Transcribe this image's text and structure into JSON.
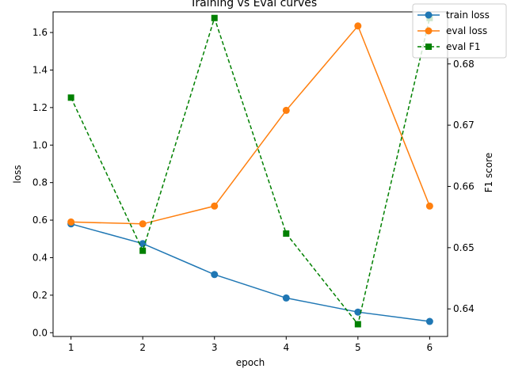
{
  "chart_data": {
    "type": "line",
    "title": "Training vs Eval curves",
    "xlabel": "epoch",
    "ylabel": "loss",
    "ylabel_right": "F1 score",
    "x": [
      1,
      2,
      3,
      4,
      5,
      6
    ],
    "xlim": [
      0.75,
      6.25
    ],
    "ylim": [
      -0.02,
      1.71
    ],
    "ylim_right": [
      0.6355,
      0.6885
    ],
    "x_ticks": [
      "1",
      "2",
      "3",
      "4",
      "5",
      "6"
    ],
    "y_ticks": [
      "0.0",
      "0.2",
      "0.4",
      "0.6",
      "0.8",
      "1.0",
      "1.2",
      "1.4",
      "1.6"
    ],
    "y_ticks_right": [
      "0.64",
      "0.65",
      "0.66",
      "0.67",
      "0.68"
    ],
    "grid": false,
    "legend_position": "top-right",
    "series": [
      {
        "name": "train loss",
        "axis": "left",
        "color": "#1f77b4",
        "marker": "circle",
        "linestyle": "solid",
        "values": [
          0.58,
          0.475,
          0.31,
          0.185,
          0.11,
          0.06
        ]
      },
      {
        "name": "eval loss",
        "axis": "left",
        "color": "#ff7f0e",
        "marker": "circle",
        "linestyle": "solid",
        "values": [
          0.59,
          0.58,
          0.675,
          1.185,
          1.635,
          0.675
        ]
      },
      {
        "name": "eval F1",
        "axis": "right",
        "color": "#008000",
        "marker": "square",
        "linestyle": "dashed",
        "values": [
          0.6745,
          0.6495,
          0.6875,
          0.6523,
          0.6375,
          0.6875
        ]
      }
    ]
  }
}
